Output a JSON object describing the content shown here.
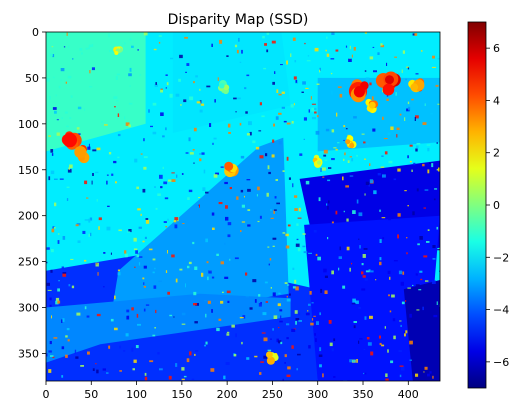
{
  "chart_data": {
    "type": "heatmap",
    "title": "Disparity Map (SSD)",
    "xlabel": "",
    "ylabel": "",
    "xlim": [
      0,
      435
    ],
    "ylim": [
      380,
      0
    ],
    "x_ticks": [
      0,
      50,
      100,
      150,
      200,
      250,
      300,
      350,
      400
    ],
    "y_ticks": [
      0,
      50,
      100,
      150,
      200,
      250,
      300,
      350
    ],
    "colormap": "jet",
    "colorbar": {
      "vmin": -7,
      "vmax": 7,
      "ticks": [
        -6,
        -4,
        -2,
        0,
        2,
        4,
        6
      ]
    },
    "regions": [
      {
        "polygon": [
          [
            0,
            0
          ],
          [
            435,
            0
          ],
          [
            435,
            380
          ],
          [
            0,
            380
          ]
        ],
        "value": -2.0
      },
      {
        "polygon": [
          [
            0,
            0
          ],
          [
            110,
            0
          ],
          [
            110,
            100
          ],
          [
            0,
            130
          ]
        ],
        "value": -1.0
      },
      {
        "polygon": [
          [
            300,
            50
          ],
          [
            435,
            50
          ],
          [
            435,
            120
          ],
          [
            300,
            130
          ]
        ],
        "value": -2.6
      },
      {
        "polygon": [
          [
            140,
            0
          ],
          [
            260,
            0
          ],
          [
            270,
            80
          ],
          [
            140,
            110
          ]
        ],
        "value": -2.1
      },
      {
        "polygon": [
          [
            0,
            260
          ],
          [
            120,
            240
          ],
          [
            300,
            280
          ],
          [
            300,
            380
          ],
          [
            0,
            380
          ]
        ],
        "value": -4.6
      },
      {
        "polygon": [
          [
            80,
            260
          ],
          [
            235,
            125
          ],
          [
            262,
            115
          ],
          [
            268,
            285
          ],
          [
            140,
            305
          ],
          [
            70,
            320
          ]
        ],
        "value": -3.1
      },
      {
        "polygon": [
          [
            0,
            300
          ],
          [
            170,
            285
          ],
          [
            270,
            290
          ],
          [
            270,
            310
          ],
          [
            60,
            340
          ],
          [
            0,
            360
          ]
        ],
        "value": -3.4
      },
      {
        "polygon": [
          [
            280,
            160
          ],
          [
            435,
            140
          ],
          [
            435,
            235
          ],
          [
            300,
            250
          ]
        ],
        "value": -5.6
      },
      {
        "polygon": [
          [
            285,
            210
          ],
          [
            435,
            200
          ],
          [
            420,
            380
          ],
          [
            300,
            380
          ]
        ],
        "value": -5.0
      },
      {
        "polygon": [
          [
            395,
            280
          ],
          [
            435,
            270
          ],
          [
            435,
            380
          ],
          [
            405,
            380
          ]
        ],
        "value": -6.3
      }
    ],
    "hotspots": [
      {
        "x": 30,
        "y": 118,
        "r": 10,
        "value": 5.5
      },
      {
        "x": 40,
        "y": 132,
        "r": 8,
        "value": 5.0
      },
      {
        "x": 345,
        "y": 60,
        "r": 12,
        "value": 5.5
      },
      {
        "x": 378,
        "y": 58,
        "r": 10,
        "value": 6.2
      },
      {
        "x": 410,
        "y": 60,
        "r": 8,
        "value": 4.5
      },
      {
        "x": 205,
        "y": 150,
        "r": 8,
        "value": 4.0
      },
      {
        "x": 300,
        "y": 140,
        "r": 6,
        "value": 3.0
      },
      {
        "x": 360,
        "y": 80,
        "r": 6,
        "value": 4.0
      },
      {
        "x": 335,
        "y": 120,
        "r": 6,
        "value": 3.5
      },
      {
        "x": 250,
        "y": 355,
        "r": 6,
        "value": 3.0
      },
      {
        "x": 80,
        "y": 20,
        "r": 5,
        "value": 2.0
      },
      {
        "x": 195,
        "y": 60,
        "r": 6,
        "value": 1.0
      }
    ]
  }
}
